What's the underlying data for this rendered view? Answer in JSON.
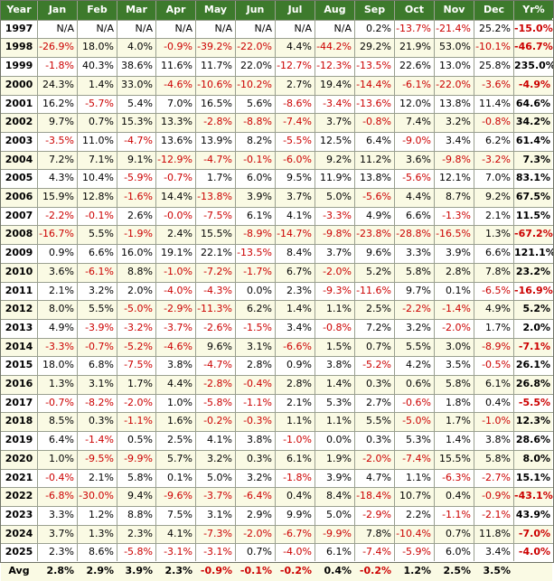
{
  "chart_data": {
    "type": "table",
    "columns": [
      "Year",
      "Jan",
      "Feb",
      "Mar",
      "Apr",
      "May",
      "Jun",
      "Jul",
      "Aug",
      "Sep",
      "Oct",
      "Nov",
      "Dec",
      "Yr%"
    ],
    "rows": [
      [
        "1997",
        "N/A",
        "N/A",
        "N/A",
        "N/A",
        "N/A",
        "N/A",
        "N/A",
        "N/A",
        "0.2%",
        "-13.7%",
        "-21.4%",
        "25.2%",
        "-15.0%"
      ],
      [
        "1998",
        "-26.9%",
        "18.0%",
        "4.0%",
        "-0.9%",
        "-39.2%",
        "-22.0%",
        "4.4%",
        "-44.2%",
        "29.2%",
        "21.9%",
        "53.0%",
        "-10.1%",
        "-46.7%"
      ],
      [
        "1999",
        "-1.8%",
        "40.3%",
        "38.6%",
        "11.6%",
        "11.7%",
        "22.0%",
        "-12.7%",
        "-12.3%",
        "-13.5%",
        "22.6%",
        "13.0%",
        "25.8%",
        "235.0%"
      ],
      [
        "2000",
        "24.3%",
        "1.4%",
        "33.0%",
        "-4.6%",
        "-10.6%",
        "-10.2%",
        "2.7%",
        "19.4%",
        "-14.4%",
        "-6.1%",
        "-22.0%",
        "-3.6%",
        "-4.9%"
      ],
      [
        "2001",
        "16.2%",
        "-5.7%",
        "5.4%",
        "7.0%",
        "16.5%",
        "5.6%",
        "-8.6%",
        "-3.4%",
        "-13.6%",
        "12.0%",
        "13.8%",
        "11.4%",
        "64.6%"
      ],
      [
        "2002",
        "9.7%",
        "0.7%",
        "15.3%",
        "13.3%",
        "-2.8%",
        "-8.8%",
        "-7.4%",
        "3.7%",
        "-0.8%",
        "7.4%",
        "3.2%",
        "-0.8%",
        "34.2%"
      ],
      [
        "2003",
        "-3.5%",
        "11.0%",
        "-4.7%",
        "13.6%",
        "13.9%",
        "8.2%",
        "-5.5%",
        "12.5%",
        "6.4%",
        "-9.0%",
        "3.4%",
        "6.2%",
        "61.4%"
      ],
      [
        "2004",
        "7.2%",
        "7.1%",
        "9.1%",
        "-12.9%",
        "-4.7%",
        "-0.1%",
        "-6.0%",
        "9.2%",
        "11.2%",
        "3.6%",
        "-9.8%",
        "-3.2%",
        "7.3%"
      ],
      [
        "2005",
        "4.3%",
        "10.4%",
        "-5.9%",
        "-0.7%",
        "1.7%",
        "6.0%",
        "9.5%",
        "11.9%",
        "13.8%",
        "-5.6%",
        "12.1%",
        "7.0%",
        "83.1%"
      ],
      [
        "2006",
        "15.9%",
        "12.8%",
        "-1.6%",
        "14.4%",
        "-13.8%",
        "3.9%",
        "3.7%",
        "5.0%",
        "-5.6%",
        "4.4%",
        "8.7%",
        "9.2%",
        "67.5%"
      ],
      [
        "2007",
        "-2.2%",
        "-0.1%",
        "2.6%",
        "-0.0%",
        "-7.5%",
        "6.1%",
        "4.1%",
        "-3.3%",
        "4.9%",
        "6.6%",
        "-1.3%",
        "2.1%",
        "11.5%"
      ],
      [
        "2008",
        "-16.7%",
        "5.5%",
        "-1.9%",
        "2.4%",
        "15.5%",
        "-8.9%",
        "-14.7%",
        "-9.8%",
        "-23.8%",
        "-28.8%",
        "-16.5%",
        "1.3%",
        "-67.2%"
      ],
      [
        "2009",
        "0.9%",
        "6.6%",
        "16.0%",
        "19.1%",
        "22.1%",
        "-13.5%",
        "8.4%",
        "3.7%",
        "9.6%",
        "3.3%",
        "3.9%",
        "6.6%",
        "121.1%"
      ],
      [
        "2010",
        "3.6%",
        "-6.1%",
        "8.8%",
        "-1.0%",
        "-7.2%",
        "-1.7%",
        "6.7%",
        "-2.0%",
        "5.2%",
        "5.8%",
        "2.8%",
        "7.8%",
        "23.2%"
      ],
      [
        "2011",
        "2.1%",
        "3.2%",
        "2.0%",
        "-4.0%",
        "-4.3%",
        "0.0%",
        "2.3%",
        "-9.3%",
        "-11.6%",
        "9.7%",
        "0.1%",
        "-6.5%",
        "-16.9%"
      ],
      [
        "2012",
        "8.0%",
        "5.5%",
        "-5.0%",
        "-2.9%",
        "-11.3%",
        "6.2%",
        "1.4%",
        "1.1%",
        "2.5%",
        "-2.2%",
        "-1.4%",
        "4.9%",
        "5.2%"
      ],
      [
        "2013",
        "4.9%",
        "-3.9%",
        "-3.2%",
        "-3.7%",
        "-2.6%",
        "-1.5%",
        "3.4%",
        "-0.8%",
        "7.2%",
        "3.2%",
        "-2.0%",
        "1.7%",
        "2.0%"
      ],
      [
        "2014",
        "-3.3%",
        "-0.7%",
        "-5.2%",
        "-4.6%",
        "9.6%",
        "3.1%",
        "-6.6%",
        "1.5%",
        "0.7%",
        "5.5%",
        "3.0%",
        "-8.9%",
        "-7.1%"
      ],
      [
        "2015",
        "18.0%",
        "6.8%",
        "-7.5%",
        "3.8%",
        "-4.7%",
        "2.8%",
        "0.9%",
        "3.8%",
        "-5.2%",
        "4.2%",
        "3.5%",
        "-0.5%",
        "26.1%"
      ],
      [
        "2016",
        "1.3%",
        "3.1%",
        "1.7%",
        "4.4%",
        "-2.8%",
        "-0.4%",
        "2.8%",
        "1.4%",
        "0.3%",
        "0.6%",
        "5.8%",
        "6.1%",
        "26.8%"
      ],
      [
        "2017",
        "-0.7%",
        "-8.2%",
        "-2.0%",
        "1.0%",
        "-5.8%",
        "-1.1%",
        "2.1%",
        "5.3%",
        "2.7%",
        "-0.6%",
        "1.8%",
        "0.4%",
        "-5.5%"
      ],
      [
        "2018",
        "8.5%",
        "0.3%",
        "-1.1%",
        "1.6%",
        "-0.2%",
        "-0.3%",
        "1.1%",
        "1.1%",
        "5.5%",
        "-5.0%",
        "1.7%",
        "-1.0%",
        "12.3%"
      ],
      [
        "2019",
        "6.4%",
        "-1.4%",
        "0.5%",
        "2.5%",
        "4.1%",
        "3.8%",
        "-1.0%",
        "0.0%",
        "0.3%",
        "5.3%",
        "1.4%",
        "3.8%",
        "28.6%"
      ],
      [
        "2020",
        "1.0%",
        "-9.5%",
        "-9.9%",
        "5.7%",
        "3.2%",
        "0.3%",
        "6.1%",
        "1.9%",
        "-2.0%",
        "-7.4%",
        "15.5%",
        "5.8%",
        "8.0%"
      ],
      [
        "2021",
        "-0.4%",
        "2.1%",
        "5.8%",
        "0.1%",
        "5.0%",
        "3.2%",
        "-1.8%",
        "3.9%",
        "4.7%",
        "1.1%",
        "-6.3%",
        "-2.7%",
        "15.1%"
      ],
      [
        "2022",
        "-6.8%",
        "-30.0%",
        "9.4%",
        "-9.6%",
        "-3.7%",
        "-6.4%",
        "0.4%",
        "8.4%",
        "-18.4%",
        "10.7%",
        "0.4%",
        "-0.9%",
        "-43.1%"
      ],
      [
        "2023",
        "3.3%",
        "1.2%",
        "8.8%",
        "7.5%",
        "3.1%",
        "2.9%",
        "9.9%",
        "5.0%",
        "-2.9%",
        "2.2%",
        "-1.1%",
        "-2.1%",
        "43.9%"
      ],
      [
        "2024",
        "3.7%",
        "1.3%",
        "2.3%",
        "4.1%",
        "-7.3%",
        "-2.0%",
        "-6.7%",
        "-9.9%",
        "7.8%",
        "-10.4%",
        "0.7%",
        "11.8%",
        "-7.0%"
      ],
      [
        "2025",
        "2.3%",
        "8.6%",
        "-5.8%",
        "-3.1%",
        "-3.1%",
        "0.7%",
        "-4.0%",
        "6.1%",
        "-7.4%",
        "-5.9%",
        "6.0%",
        "3.4%",
        "-4.0%"
      ]
    ],
    "avg_row": [
      "Avg",
      "2.8%",
      "2.9%",
      "3.9%",
      "2.3%",
      "-0.9%",
      "-0.1%",
      "-0.2%",
      "0.4%",
      "-0.2%",
      "1.2%",
      "2.5%",
      "3.5%",
      ""
    ]
  },
  "colors": {
    "header_bg": "#3d7a2c",
    "header_text": "#ffffff",
    "row_bg_a": "#ffffff",
    "row_bg_b": "#fafae4",
    "negative_text": "#cc0000",
    "positive_text": "#000000",
    "total_negative_text": "#cc0000"
  }
}
